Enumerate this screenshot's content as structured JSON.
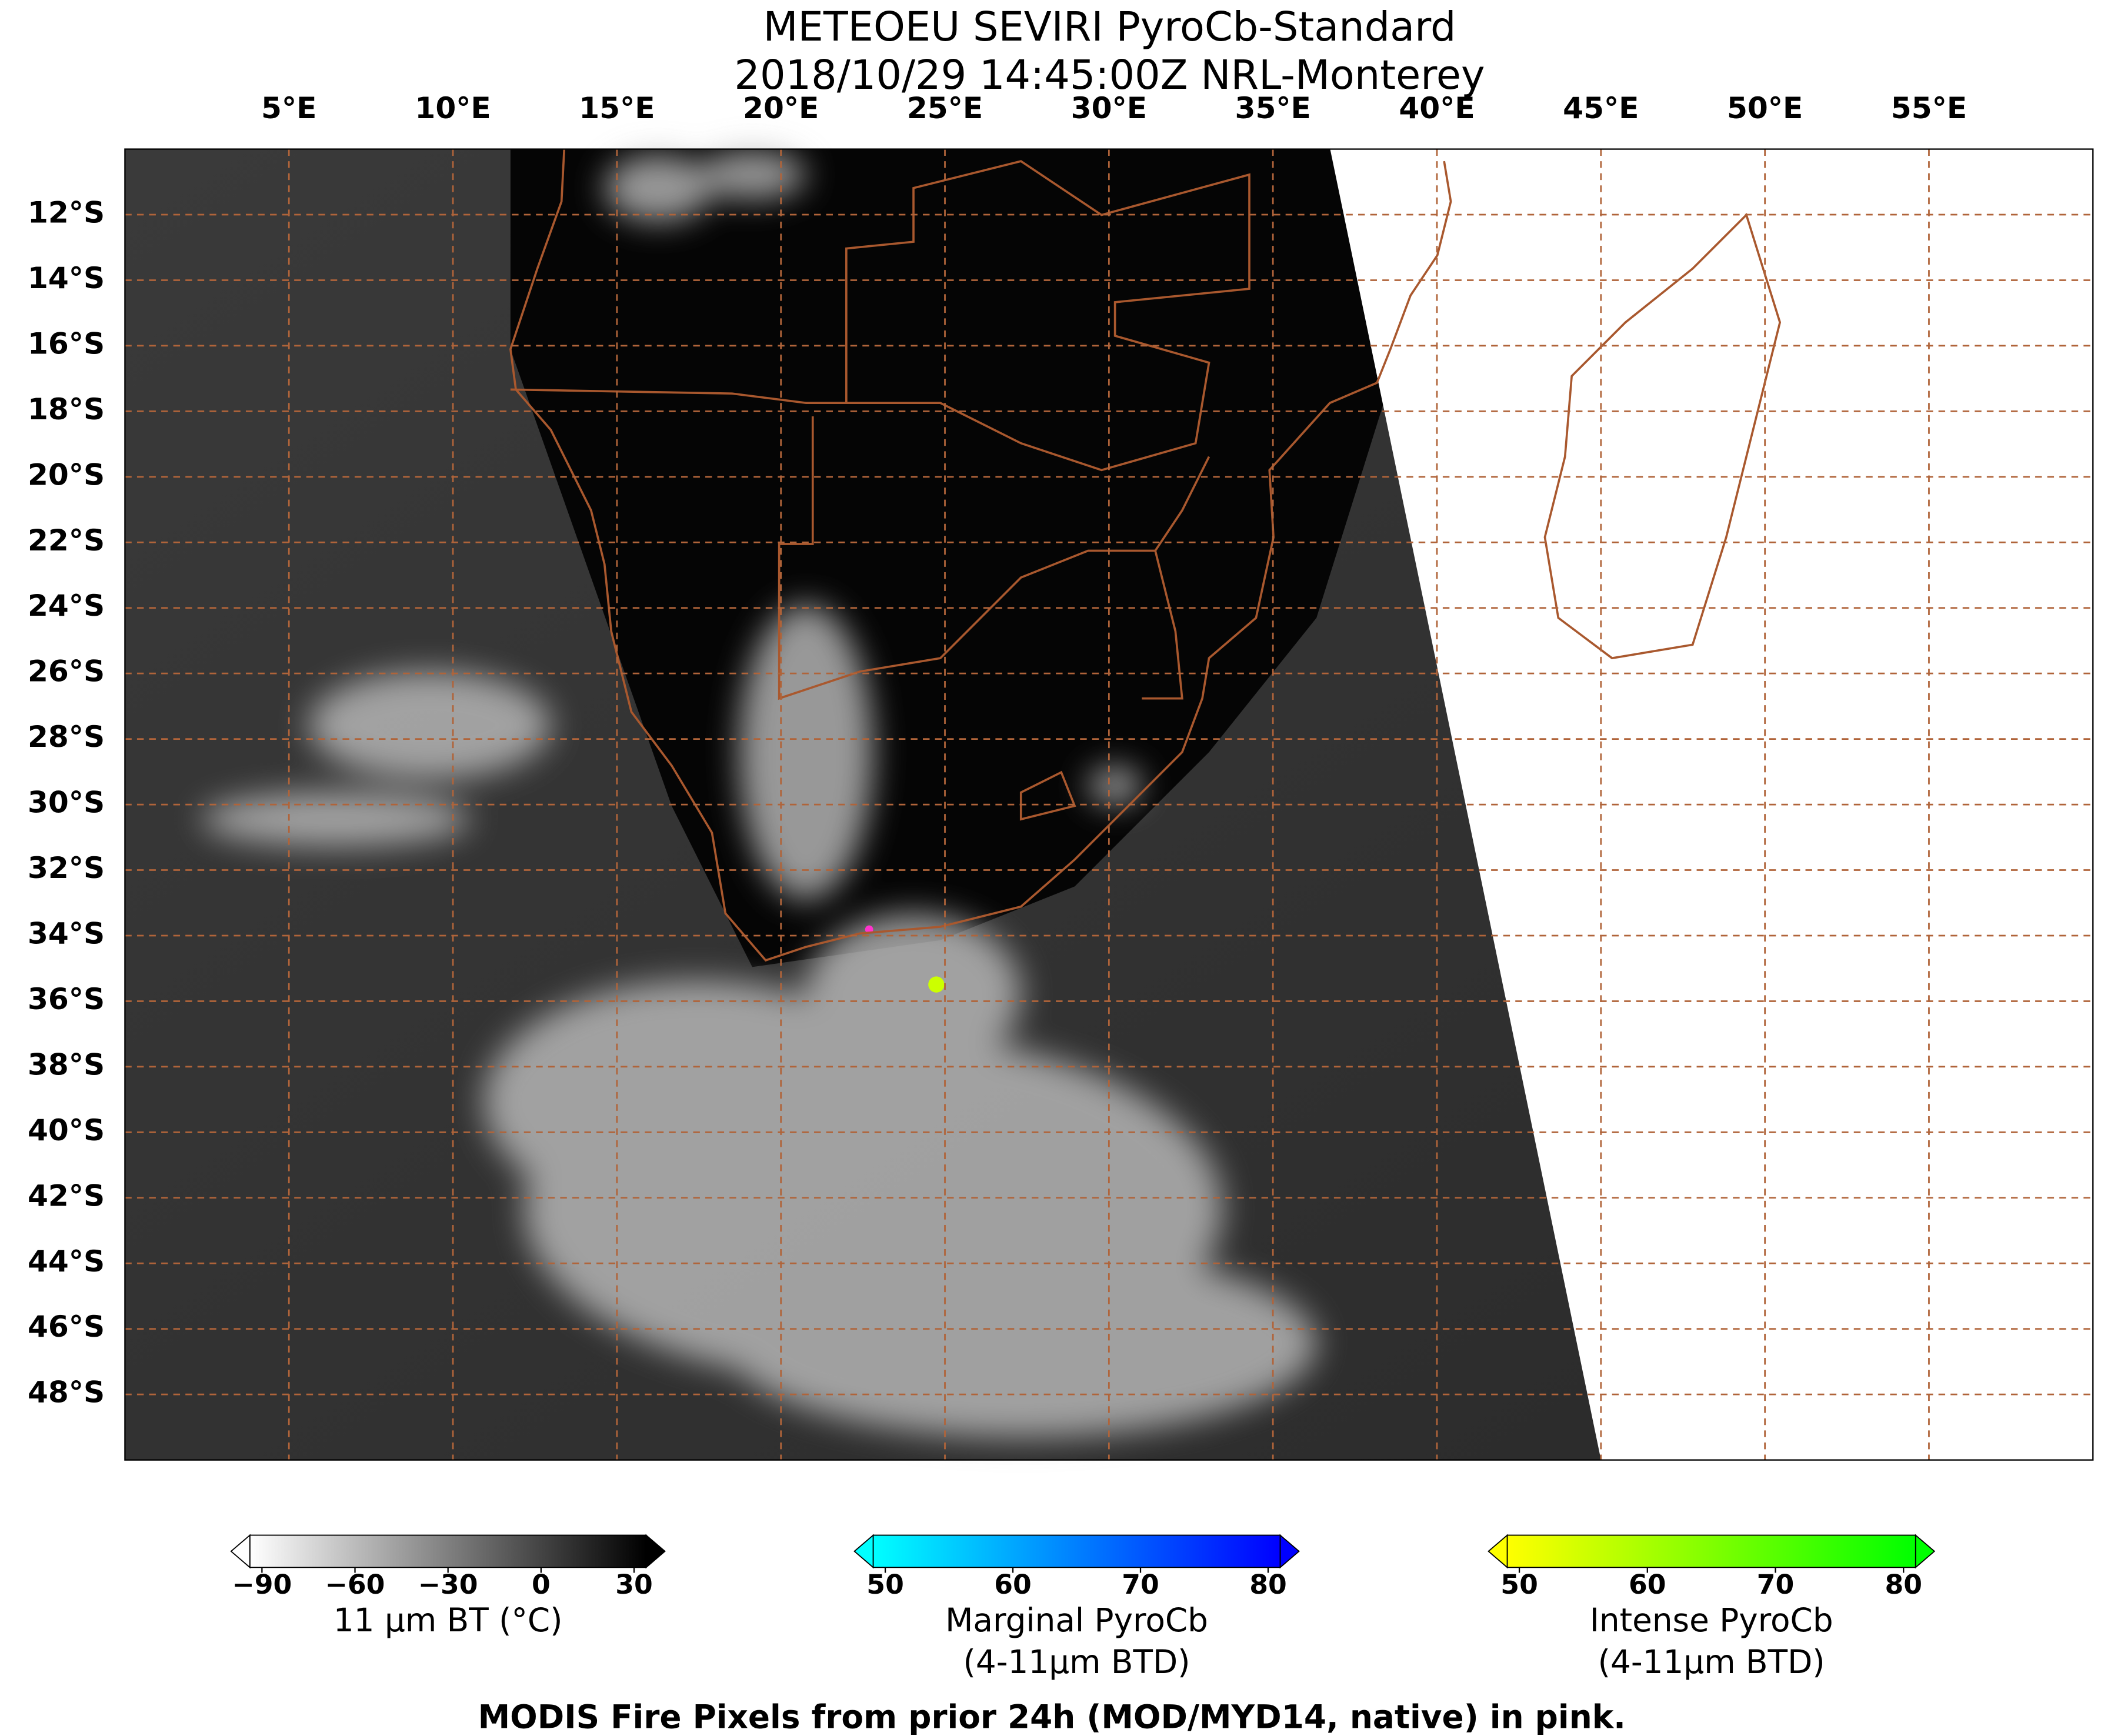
{
  "title": [
    "METEOEU SEVIRI PyroCb-Standard",
    "2018/10/29 14:45:00Z NRL-Monterey"
  ],
  "map": {
    "xlim": [
      0,
      60
    ],
    "ylim": [
      -10,
      -50
    ],
    "xticks": [
      {
        "value": 5,
        "label": "5°E"
      },
      {
        "value": 10,
        "label": "10°E"
      },
      {
        "value": 15,
        "label": "15°E"
      },
      {
        "value": 20,
        "label": "20°E"
      },
      {
        "value": 25,
        "label": "25°E"
      },
      {
        "value": 30,
        "label": "30°E"
      },
      {
        "value": 35,
        "label": "35°E"
      },
      {
        "value": 40,
        "label": "40°E"
      },
      {
        "value": 45,
        "label": "45°E"
      },
      {
        "value": 50,
        "label": "50°E"
      },
      {
        "value": 55,
        "label": "55°E"
      }
    ],
    "yticks": [
      {
        "value": -12,
        "label": "12°S"
      },
      {
        "value": -14,
        "label": "14°S"
      },
      {
        "value": -16,
        "label": "16°S"
      },
      {
        "value": -18,
        "label": "18°S"
      },
      {
        "value": -20,
        "label": "20°S"
      },
      {
        "value": -22,
        "label": "22°S"
      },
      {
        "value": -24,
        "label": "24°S"
      },
      {
        "value": -26,
        "label": "26°S"
      },
      {
        "value": -28,
        "label": "28°S"
      },
      {
        "value": -30,
        "label": "30°S"
      },
      {
        "value": -32,
        "label": "32°S"
      },
      {
        "value": -34,
        "label": "34°S"
      },
      {
        "value": -36,
        "label": "36°S"
      },
      {
        "value": -38,
        "label": "38°S"
      },
      {
        "value": -40,
        "label": "40°S"
      },
      {
        "value": -42,
        "label": "42°S"
      },
      {
        "value": -44,
        "label": "44°S"
      },
      {
        "value": -46,
        "label": "46°S"
      },
      {
        "value": -48,
        "label": "48°S"
      }
    ],
    "grid": true
  },
  "colorbars": [
    {
      "label": [
        "11 μm BT (°C)"
      ],
      "lim": [
        -90,
        30
      ],
      "colors": [
        "#ffffff",
        "#000000"
      ],
      "ticks": [
        {
          "value": -90,
          "label": "−90"
        },
        {
          "value": -60,
          "label": "−60"
        },
        {
          "value": -30,
          "label": "−30"
        },
        0,
        30
      ]
    },
    {
      "label": [
        "Marginal PyroCb",
        "(4-11μm BTD)"
      ],
      "lim": [
        50,
        80
      ],
      "colors": [
        "#00ffff",
        "#0000ff"
      ],
      "ticks": [
        50,
        60,
        70,
        80
      ]
    },
    {
      "label": [
        "Intense PyroCb",
        "(4-11μm BTD)"
      ],
      "lim": [
        50,
        80
      ],
      "colors": [
        "#ffff00",
        "#00ff00"
      ],
      "ticks": [
        50,
        60,
        70,
        80
      ]
    }
  ],
  "footer": "MODIS Fire Pixels from prior 24h (MOD/MYD14, native) in pink."
}
